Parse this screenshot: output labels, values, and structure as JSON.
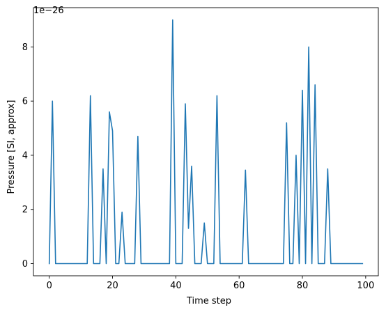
{
  "chart_data": {
    "type": "line",
    "title": "",
    "xlabel": "Time step",
    "ylabel": "Pressure [SI, approx]",
    "y_offset_text": "1e−26",
    "xlim": [
      -5,
      104
    ],
    "ylim": [
      -0.45,
      9.45
    ],
    "x_ticks": [
      0,
      20,
      40,
      60,
      80,
      100
    ],
    "y_ticks": [
      0,
      2,
      4,
      6,
      8
    ],
    "grid": false,
    "color": "#1f77b4",
    "series": [
      {
        "x": [
          0,
          1,
          2,
          3,
          4,
          5,
          6,
          7,
          8,
          9,
          10,
          11,
          12,
          13,
          14,
          15,
          16,
          17,
          18,
          19,
          20,
          21,
          22,
          23,
          24,
          25,
          26,
          27,
          28,
          29,
          30,
          31,
          32,
          33,
          34,
          35,
          36,
          37,
          38,
          39,
          40,
          41,
          42,
          43,
          44,
          45,
          46,
          47,
          48,
          49,
          50,
          51,
          52,
          53,
          54,
          55,
          56,
          57,
          58,
          59,
          60,
          61,
          62,
          63,
          64,
          65,
          66,
          67,
          68,
          69,
          70,
          71,
          72,
          73,
          74,
          75,
          76,
          77,
          78,
          79,
          80,
          81,
          82,
          83,
          84,
          85,
          86,
          87,
          88,
          89,
          90,
          91,
          92,
          93,
          94,
          95,
          96,
          97,
          98,
          99
        ],
        "values": [
          0,
          6.0,
          0,
          0,
          0,
          0,
          0,
          0,
          0,
          0,
          0,
          0,
          0,
          6.2,
          0,
          0,
          0,
          3.5,
          0,
          5.6,
          4.9,
          0,
          0,
          1.9,
          0,
          0,
          0,
          0,
          4.7,
          0,
          0,
          0,
          0,
          0,
          0,
          0,
          0,
          0,
          0,
          9.0,
          0,
          0,
          0,
          5.9,
          1.3,
          3.6,
          0,
          0,
          0,
          1.5,
          0,
          0,
          0,
          6.2,
          0,
          0,
          0,
          0,
          0,
          0,
          0,
          0,
          3.45,
          0,
          0,
          0,
          0,
          0,
          0,
          0,
          0,
          0,
          0,
          0,
          0,
          5.2,
          0,
          0,
          4.0,
          0,
          6.4,
          0,
          8.0,
          0,
          6.6,
          0,
          0,
          0,
          3.5,
          0,
          0,
          0,
          0,
          0,
          0,
          0,
          0,
          0,
          0,
          0
        ]
      }
    ]
  }
}
